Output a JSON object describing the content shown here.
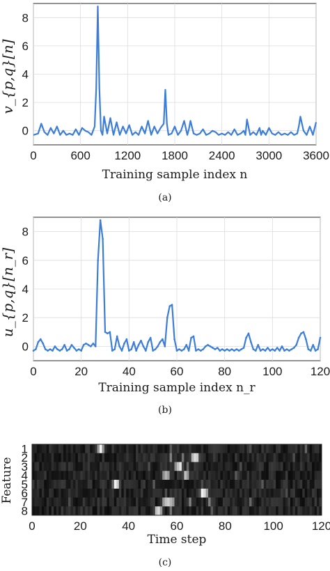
{
  "chart_data": [
    {
      "type": "line",
      "ylabel": "v_{p,q}[n]",
      "xlabel": "Training sample index n",
      "caption": "(a)",
      "xlim": [
        0,
        3600
      ],
      "ylim": [
        -1,
        9
      ],
      "xticks": [
        0,
        600,
        1200,
        1800,
        2400,
        3000,
        3600
      ],
      "yticks": [
        0,
        2,
        4,
        6,
        8
      ],
      "grid": true,
      "color": "#3b7dd8",
      "x": [
        0,
        60,
        100,
        140,
        180,
        220,
        260,
        300,
        340,
        380,
        420,
        460,
        500,
        540,
        580,
        620,
        660,
        700,
        740,
        780,
        800,
        820,
        840,
        860,
        880,
        900,
        940,
        980,
        1020,
        1060,
        1100,
        1140,
        1180,
        1220,
        1260,
        1300,
        1340,
        1380,
        1420,
        1460,
        1500,
        1540,
        1580,
        1620,
        1660,
        1680,
        1700,
        1720,
        1760,
        1800,
        1840,
        1880,
        1920,
        1960,
        1980,
        2000,
        2040,
        2080,
        2120,
        2160,
        2200,
        2240,
        2280,
        2320,
        2360,
        2400,
        2440,
        2480,
        2520,
        2560,
        2600,
        2640,
        2680,
        2700,
        2720,
        2760,
        2800,
        2840,
        2880,
        2900,
        2920,
        2960,
        3000,
        3040,
        3080,
        3120,
        3160,
        3200,
        3240,
        3280,
        3320,
        3360,
        3380,
        3400,
        3440,
        3480,
        3520,
        3560,
        3600
      ],
      "y": [
        -0.3,
        -0.2,
        0.5,
        -0.1,
        -0.3,
        0.2,
        -0.2,
        0.3,
        -0.3,
        0.0,
        -0.3,
        -0.2,
        -0.3,
        0.1,
        -0.3,
        0.2,
        0.0,
        -0.1,
        -0.3,
        0.3,
        3.0,
        8.8,
        3.0,
        0.0,
        -0.3,
        1.0,
        -0.2,
        0.9,
        -0.3,
        0.6,
        -0.3,
        0.3,
        -0.2,
        0.4,
        -0.3,
        -0.1,
        -0.3,
        0.3,
        -0.2,
        0.7,
        -0.3,
        0.3,
        -0.2,
        0.2,
        0.5,
        2.9,
        0.5,
        -0.3,
        -0.2,
        0.3,
        -0.3,
        0.0,
        0.7,
        -0.3,
        0.1,
        0.7,
        -0.2,
        -0.3,
        -0.2,
        0.1,
        -0.3,
        -0.2,
        0.0,
        -0.1,
        -0.3,
        -0.2,
        -0.3,
        -0.1,
        -0.3,
        0.1,
        -0.3,
        -0.2,
        0.0,
        -0.3,
        0.8,
        -0.3,
        -0.1,
        -0.3,
        0.2,
        -0.3,
        0.0,
        -0.3,
        0.2,
        -0.2,
        -0.3,
        -0.1,
        -0.3,
        -0.2,
        -0.3,
        -0.1,
        -0.3,
        -0.2,
        0.3,
        1.0,
        0.0,
        -0.3,
        0.3,
        -0.3,
        0.6
      ]
    },
    {
      "type": "line",
      "ylabel": "u_{p,q}[n_r]",
      "xlabel": "Training sample index n_r",
      "caption": "(b)",
      "xlim": [
        0,
        120
      ],
      "ylim": [
        -1,
        9
      ],
      "xticks": [
        0,
        20,
        40,
        60,
        80,
        100,
        120
      ],
      "yticks": [
        0,
        2,
        4,
        6,
        8
      ],
      "grid": true,
      "color": "#3b7dd8",
      "x": [
        0,
        1,
        2,
        3,
        4,
        5,
        6,
        7,
        8,
        9,
        10,
        11,
        12,
        13,
        14,
        15,
        16,
        17,
        18,
        19,
        20,
        21,
        22,
        23,
        24,
        25,
        26,
        27,
        28,
        29,
        30,
        31,
        32,
        33,
        34,
        35,
        36,
        37,
        38,
        39,
        40,
        41,
        42,
        43,
        44,
        45,
        46,
        47,
        48,
        49,
        50,
        51,
        52,
        53,
        54,
        55,
        56,
        57,
        58,
        59,
        60,
        61,
        62,
        63,
        64,
        65,
        66,
        67,
        68,
        69,
        70,
        71,
        72,
        73,
        74,
        75,
        76,
        77,
        78,
        79,
        80,
        81,
        82,
        83,
        84,
        85,
        86,
        87,
        88,
        89,
        90,
        91,
        92,
        93,
        94,
        95,
        96,
        97,
        98,
        99,
        100,
        101,
        102,
        103,
        104,
        105,
        106,
        107,
        108,
        109,
        110,
        111,
        112,
        113,
        114,
        115,
        116,
        117,
        118,
        119,
        120
      ],
      "y": [
        -0.3,
        -0.2,
        0.3,
        0.5,
        0.2,
        -0.2,
        -0.3,
        -0.2,
        -0.3,
        0.0,
        -0.2,
        -0.3,
        -0.2,
        0.1,
        -0.3,
        -0.2,
        0.1,
        -0.1,
        -0.3,
        -0.2,
        -0.3,
        0.1,
        0.2,
        0.1,
        0.0,
        0.2,
        0.0,
        6.0,
        8.8,
        7.5,
        1.0,
        0.9,
        1.0,
        -0.3,
        -0.2,
        0.7,
        0.0,
        -0.3,
        0.2,
        0.5,
        -0.3,
        -0.2,
        0.3,
        -0.3,
        0.1,
        0.4,
        0.0,
        -0.3,
        0.3,
        0.6,
        -0.3,
        -0.2,
        0.0,
        0.3,
        0.5,
        0.0,
        2.0,
        2.8,
        2.9,
        0.5,
        -0.3,
        -0.2,
        -0.3,
        -0.2,
        0.1,
        -0.3,
        0.6,
        0.7,
        -0.3,
        -0.2,
        -0.3,
        -0.2,
        0.0,
        0.1,
        0.0,
        -0.1,
        -0.2,
        -0.1,
        -0.3,
        -0.2,
        -0.3,
        -0.2,
        -0.3,
        -0.2,
        -0.3,
        -0.2,
        -0.3,
        -0.2,
        -0.1,
        0.6,
        0.9,
        0.3,
        -0.2,
        -0.3,
        0.1,
        -0.3,
        -0.2,
        -0.3,
        -0.1,
        -0.3,
        -0.2,
        -0.3,
        -0.1,
        -0.3,
        0.0,
        -0.3,
        -0.2,
        -0.3,
        -0.2,
        -0.1,
        0.1,
        0.6,
        0.9,
        1.0,
        0.5,
        -0.2,
        -0.3,
        0.1,
        -0.3,
        -0.2,
        0.6
      ]
    },
    {
      "type": "heatmap",
      "ylabel": "Feature",
      "xlabel": "Time step",
      "caption": "(c)",
      "xlim": [
        0,
        120
      ],
      "xticks": [
        0,
        20,
        40,
        60,
        80,
        100,
        120
      ],
      "rows": [
        "1",
        "2",
        "3",
        "4",
        "5",
        "6",
        "7",
        "8"
      ],
      "colormap": "gray",
      "hotspots": [
        {
          "row": 1,
          "x": 28,
          "v": 0.95
        },
        {
          "row": 1,
          "x": 27,
          "v": 0.6
        },
        {
          "row": 1,
          "x": 29,
          "v": 0.55
        },
        {
          "row": 1,
          "x": 90,
          "v": 0.3
        },
        {
          "row": 1,
          "x": 113,
          "v": 0.4
        },
        {
          "row": 1,
          "x": 57,
          "v": 0.35
        },
        {
          "row": 2,
          "x": 57,
          "v": 0.5
        },
        {
          "row": 2,
          "x": 66,
          "v": 0.7
        },
        {
          "row": 2,
          "x": 67,
          "v": 0.85
        },
        {
          "row": 2,
          "x": 68,
          "v": 0.8
        },
        {
          "row": 2,
          "x": 62,
          "v": 0.45
        },
        {
          "row": 2,
          "x": 108,
          "v": 0.3
        },
        {
          "row": 3,
          "x": 60,
          "v": 0.75
        },
        {
          "row": 3,
          "x": 61,
          "v": 0.9
        },
        {
          "row": 3,
          "x": 59,
          "v": 0.55
        },
        {
          "row": 3,
          "x": 64,
          "v": 0.4
        },
        {
          "row": 3,
          "x": 48,
          "v": 0.3
        },
        {
          "row": 3,
          "x": 86,
          "v": 0.3
        },
        {
          "row": 4,
          "x": 54,
          "v": 0.55
        },
        {
          "row": 4,
          "x": 55,
          "v": 0.7
        },
        {
          "row": 4,
          "x": 56,
          "v": 0.6
        },
        {
          "row": 4,
          "x": 63,
          "v": 0.75
        },
        {
          "row": 4,
          "x": 64,
          "v": 0.6
        },
        {
          "row": 4,
          "x": 84,
          "v": 0.35
        },
        {
          "row": 5,
          "x": 34,
          "v": 0.95
        },
        {
          "row": 5,
          "x": 35,
          "v": 0.8
        },
        {
          "row": 5,
          "x": 33,
          "v": 0.4
        },
        {
          "row": 5,
          "x": 50,
          "v": 0.35
        },
        {
          "row": 5,
          "x": 70,
          "v": 0.3
        },
        {
          "row": 5,
          "x": 95,
          "v": 0.35
        },
        {
          "row": 6,
          "x": 70,
          "v": 0.95
        },
        {
          "row": 6,
          "x": 71,
          "v": 0.85
        },
        {
          "row": 6,
          "x": 72,
          "v": 0.6
        },
        {
          "row": 6,
          "x": 55,
          "v": 0.3
        },
        {
          "row": 6,
          "x": 105,
          "v": 0.3
        },
        {
          "row": 7,
          "x": 54,
          "v": 0.6
        },
        {
          "row": 7,
          "x": 55,
          "v": 0.75
        },
        {
          "row": 7,
          "x": 56,
          "v": 0.8
        },
        {
          "row": 7,
          "x": 57,
          "v": 0.7
        },
        {
          "row": 7,
          "x": 58,
          "v": 0.6
        },
        {
          "row": 7,
          "x": 65,
          "v": 0.5
        },
        {
          "row": 7,
          "x": 73,
          "v": 0.5
        },
        {
          "row": 7,
          "x": 90,
          "v": 0.4
        },
        {
          "row": 7,
          "x": 15,
          "v": 0.3
        },
        {
          "row": 8,
          "x": 51,
          "v": 0.75
        },
        {
          "row": 8,
          "x": 52,
          "v": 0.85
        },
        {
          "row": 8,
          "x": 53,
          "v": 0.6
        },
        {
          "row": 8,
          "x": 57,
          "v": 0.45
        },
        {
          "row": 8,
          "x": 74,
          "v": 0.35
        }
      ]
    }
  ]
}
